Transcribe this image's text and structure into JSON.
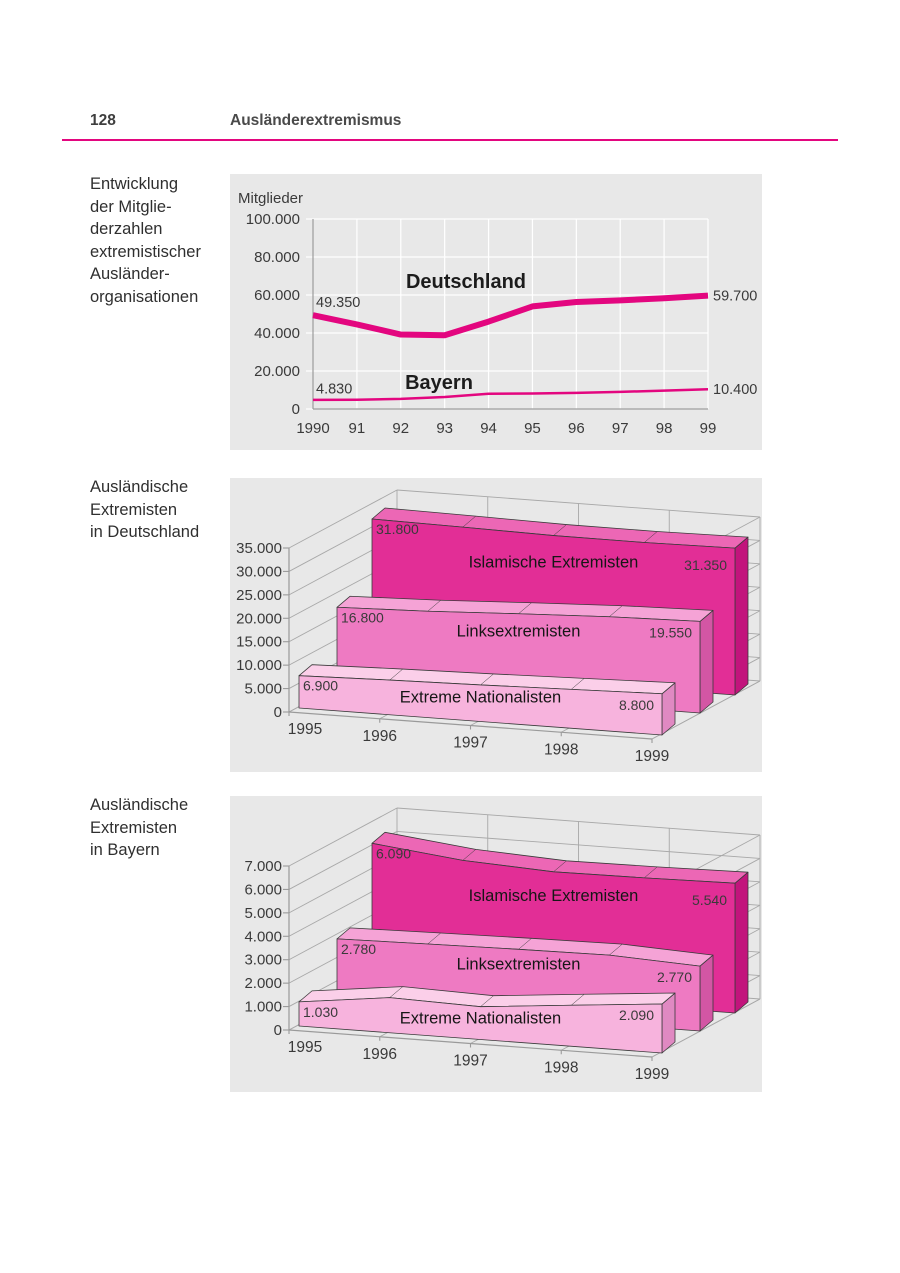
{
  "page": {
    "number": "128",
    "header_title": "Ausländerextremismus",
    "accent_color": "#e3067f",
    "panel_bg": "#e8e8e8"
  },
  "sections": [
    {
      "caption": "Entwicklung\nder Mitglie-\nderzahlen\nextremistischer\nAusländer-\norganisationen"
    },
    {
      "caption": "Ausländische\nExtremisten\nin Deutschland"
    },
    {
      "caption": "Ausländische\nExtremisten\nin Bayern"
    }
  ],
  "chart_data": [
    {
      "type": "line",
      "title": "Entwicklung der Mitgliederzahlen extremistischer Ausländerorganisationen",
      "ylabel": "Mitglieder",
      "x": [
        "1990",
        "91",
        "92",
        "93",
        "94",
        "95",
        "96",
        "97",
        "98",
        "99"
      ],
      "ylim": [
        0,
        100000
      ],
      "yticks": [
        0,
        20000,
        40000,
        60000,
        80000,
        100000
      ],
      "ytick_labels": [
        "0",
        "20.000",
        "40.000",
        "60.000",
        "80.000",
        "100.000"
      ],
      "grid": true,
      "legend": "inline-labels",
      "series": [
        {
          "name": "Deutschland",
          "color": "#e3067f",
          "stroke_width": 6,
          "values": [
            49350,
            44500,
            39200,
            38800,
            46000,
            54000,
            56300,
            57200,
            58300,
            59700
          ],
          "first_label": "49.350",
          "last_label": "59.700"
        },
        {
          "name": "Bayern",
          "color": "#e3067f",
          "stroke_width": 2.5,
          "values": [
            4830,
            4900,
            5300,
            6300,
            8000,
            8150,
            8500,
            9000,
            9700,
            10400
          ],
          "first_label": "4.830",
          "last_label": "10.400"
        }
      ]
    },
    {
      "type": "bar",
      "subtype": "3d-ribbon",
      "title": "Ausländische Extremisten in Deutschland",
      "x": [
        "1995",
        "1996",
        "1997",
        "1998",
        "1999"
      ],
      "ylim": [
        0,
        35000
      ],
      "yticks": [
        0,
        5000,
        10000,
        15000,
        20000,
        25000,
        30000,
        35000
      ],
      "ytick_labels": [
        "0",
        "5.000",
        "10.000",
        "15.000",
        "20.000",
        "25.000",
        "30.000",
        "35.000"
      ],
      "series": [
        {
          "name": "Extreme Nationalisten",
          "values": [
            6900,
            7400,
            7800,
            8300,
            8800
          ],
          "first_label": "6.900",
          "last_label": "8.800",
          "color": "#f7b3dd",
          "top_color": "#fbcfe9",
          "side_color": "#e089c2"
        },
        {
          "name": "Linksextremisten",
          "values": [
            16800,
            17400,
            18300,
            19100,
            19550
          ],
          "first_label": "16.800",
          "last_label": "19.550",
          "color": "#ee7ac2",
          "top_color": "#f5a3d6",
          "side_color": "#d356a4"
        },
        {
          "name": "Islamische Extremisten",
          "values": [
            31800,
            31500,
            31150,
            31100,
            31350
          ],
          "first_label": "31.800",
          "last_label": "31.350",
          "color": "#e22e96",
          "top_color": "#ec67b5",
          "side_color": "#c2147c"
        }
      ]
    },
    {
      "type": "bar",
      "subtype": "3d-ribbon",
      "title": "Ausländische Extremisten in Bayern",
      "x": [
        "1995",
        "1996",
        "1997",
        "1998",
        "1999"
      ],
      "ylim": [
        0,
        7000
      ],
      "yticks": [
        0,
        1000,
        2000,
        3000,
        4000,
        5000,
        6000,
        7000
      ],
      "ytick_labels": [
        "0",
        "1.000",
        "2.000",
        "3.000",
        "4.000",
        "5.000",
        "6.000",
        "7.000"
      ],
      "series": [
        {
          "name": "Extreme Nationalisten",
          "values": [
            1030,
            1500,
            1400,
            1750,
            2090
          ],
          "first_label": "1.030",
          "last_label": "2.090",
          "color": "#f7b3dd",
          "top_color": "#fbcfe9",
          "side_color": "#e089c2"
        },
        {
          "name": "Linksextremisten",
          "values": [
            2780,
            2850,
            2910,
            2950,
            2770
          ],
          "first_label": "2.780",
          "last_label": "2.770",
          "color": "#ee7ac2",
          "top_color": "#f5a3d6",
          "side_color": "#d356a4"
        },
        {
          "name": "Islamische Extremisten",
          "values": [
            6090,
            5650,
            5450,
            5480,
            5540
          ],
          "first_label": "6.090",
          "last_label": "5.540",
          "color": "#e22e96",
          "top_color": "#ec67b5",
          "side_color": "#c2147c"
        }
      ]
    }
  ]
}
